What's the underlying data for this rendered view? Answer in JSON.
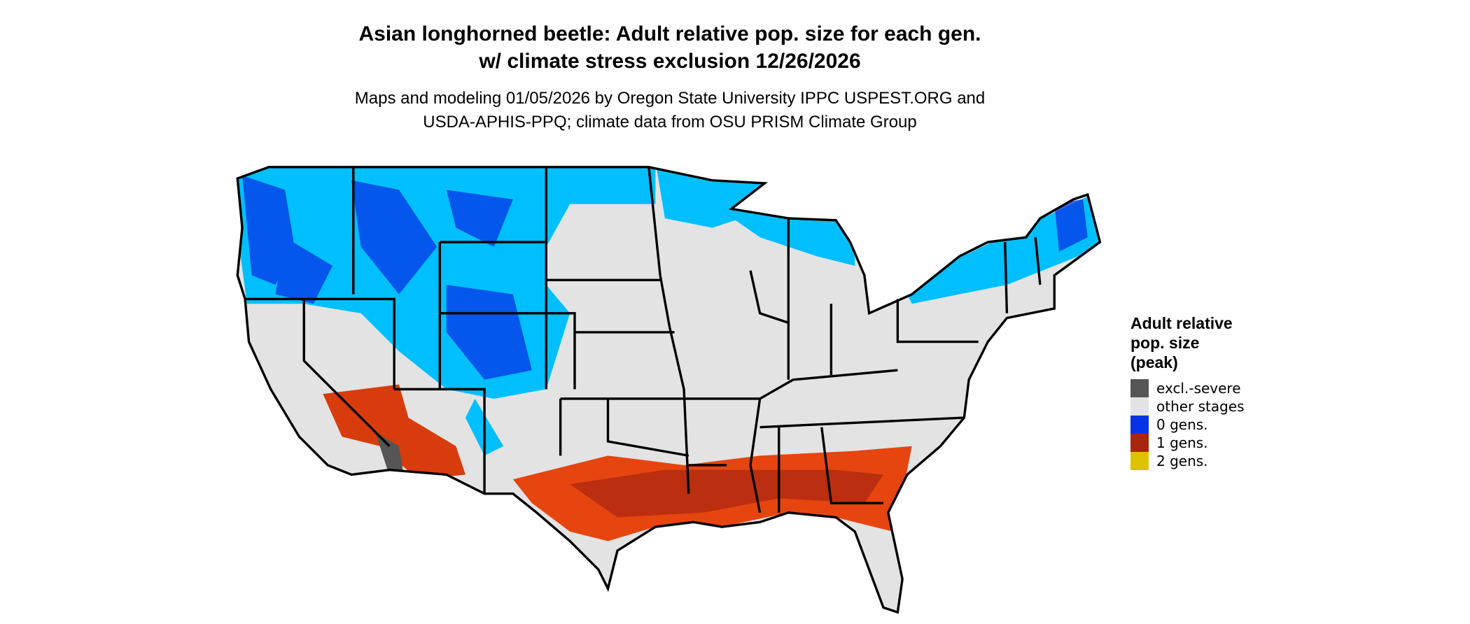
{
  "title": [
    "Asian longhorned beetle: Adult relative pop. size for each gen.",
    "w/ climate stress exclusion 12/26/2026"
  ],
  "subtitle": [
    "Maps and modeling 01/05/2026 by Oregon State University IPPC USPEST.ORG and",
    "USDA-APHIS-PPQ; climate data from OSU PRISM Climate Group"
  ],
  "legend": {
    "title": [
      "Adult relative",
      "pop. size",
      "(peak)"
    ],
    "items": [
      {
        "label": "excl.-severe",
        "color": "#555555"
      },
      {
        "label": "other stages",
        "color": "#e3e3e3"
      },
      {
        "label": "0 gens.",
        "color": "#0533e6"
      },
      {
        "label": "1 gens.",
        "color": "#a8250f"
      },
      {
        "label": "2 gens.",
        "color": "#dcc300"
      }
    ]
  }
}
